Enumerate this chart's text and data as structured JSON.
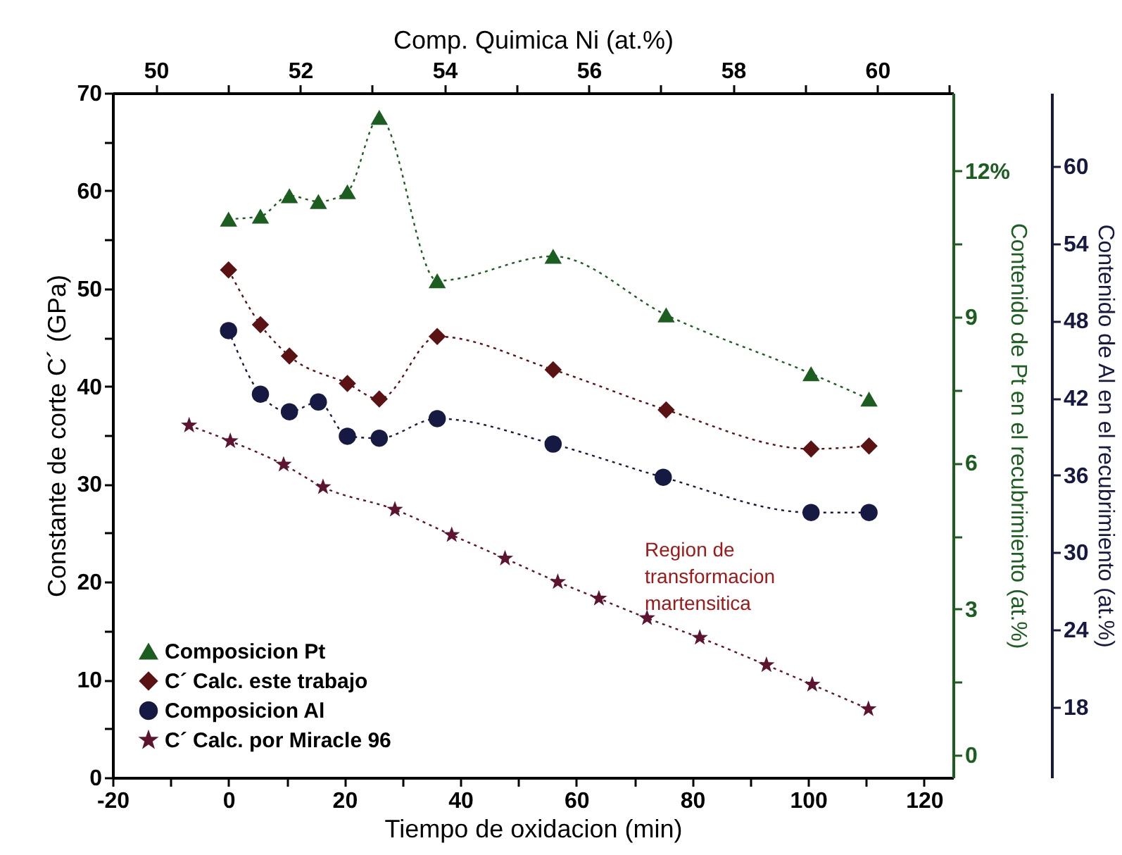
{
  "chart_data": {
    "type": "line",
    "xlabel": "Tiempo de oxidacion (min)",
    "ylabel": "Constante de corte C´ (GPa)",
    "x2label": "Comp. Quimica Ni (at.%)",
    "y2label": "Contenido de Pt en el recubrimiento (at.%)",
    "y3label": "Contenido de Al en el recubrimiento (at.%)",
    "xlim": [
      -20,
      125
    ],
    "xticks": [
      -20,
      {
        "value": -10,
        "label": null
      },
      0,
      {
        "value": 10,
        "label": null
      },
      20,
      {
        "value": 30,
        "label": null
      },
      40,
      {
        "value": 50,
        "label": null
      },
      60,
      {
        "value": 70,
        "label": null
      },
      80,
      {
        "value": 90,
        "label": null
      },
      100,
      {
        "value": 110,
        "label": null
      },
      120
    ],
    "ylim": [
      0,
      70
    ],
    "yticks": [
      0,
      {
        "value": 5,
        "label": null
      },
      10,
      {
        "value": 15,
        "label": null
      },
      20,
      {
        "value": 25,
        "label": null
      },
      30,
      {
        "value": 35,
        "label": null
      },
      40,
      {
        "value": 45,
        "label": null
      },
      50,
      {
        "value": 55,
        "label": null
      },
      60,
      {
        "value": 65,
        "label": null
      },
      70
    ],
    "x2lim": [
      49.4,
      61.05
    ],
    "x2ticks": [
      50,
      {
        "value": 51,
        "label": null
      },
      52,
      {
        "value": 53,
        "label": null
      },
      54,
      {
        "value": 55,
        "label": null
      },
      56,
      {
        "value": 57,
        "label": null
      },
      58,
      {
        "value": 59,
        "label": null
      },
      60,
      {
        "value": 61,
        "label": null
      }
    ],
    "y2lim": [
      -0.46,
      13.6
    ],
    "y2ticks": [
      0,
      {
        "value": 1.5,
        "label": null
      },
      3,
      {
        "value": 4.5,
        "label": null
      },
      6,
      {
        "value": 7.5,
        "label": null
      },
      9,
      {
        "value": 10.5,
        "label": null
      },
      {
        "value": 12,
        "label": "12%"
      }
    ],
    "y3lim": [
      12.5,
      65.7
    ],
    "y3ticks": [
      18,
      24,
      30,
      36,
      42,
      48,
      54,
      60
    ],
    "series": [
      {
        "name": "Composicion Pt",
        "color": "#1b5e20",
        "marker": "triangle",
        "x": [
          0,
          5.5,
          10.5,
          15.5,
          20.5,
          26,
          36,
          56,
          75.5,
          100.5,
          110.5
        ],
        "values": [
          57.1,
          57.4,
          59.5,
          58.9,
          59.9,
          67.5,
          50.8,
          53.3,
          47.3,
          41.3,
          38.7
        ]
      },
      {
        "name": "C´ Calc. este trabajo",
        "color": "#5a1212",
        "marker": "diamond",
        "x": [
          0,
          5.5,
          10.5,
          20.5,
          26,
          36,
          56,
          75.5,
          100.5,
          110.5
        ],
        "values": [
          51.9,
          46.3,
          43.1,
          40.3,
          38.7,
          45.1,
          41.7,
          37.6,
          33.6,
          33.9
        ]
      },
      {
        "name": "Composicion Al",
        "color": "#161a42",
        "marker": "circle",
        "x": [
          0,
          5.5,
          10.5,
          15.5,
          20.5,
          26,
          36,
          56,
          75,
          100.5,
          110.5
        ],
        "values": [
          45.7,
          39.2,
          37.4,
          38.4,
          34.9,
          34.7,
          36.7,
          34.1,
          30.7,
          27.1,
          27.1
        ]
      },
      {
        "name": "C´ Calc. por Miracle 96",
        "color": "#5c1430",
        "marker": "star",
        "x": [
          -6.8,
          0.3,
          9.5,
          16.3,
          28.7,
          38.5,
          47.7,
          56.8,
          63.9,
          72.2,
          81.3,
          92.8,
          100.7,
          110.4
        ],
        "values": [
          36.0,
          34.4,
          32.0,
          29.7,
          27.4,
          24.8,
          22.4,
          20.0,
          18.3,
          16.3,
          14.3,
          11.5,
          9.5,
          7.0
        ]
      }
    ],
    "annotations": [
      "Region de\ntransformacion\nmartensitica"
    ],
    "legend": "bottom left",
    "line_style": "dotted",
    "grid": false
  }
}
